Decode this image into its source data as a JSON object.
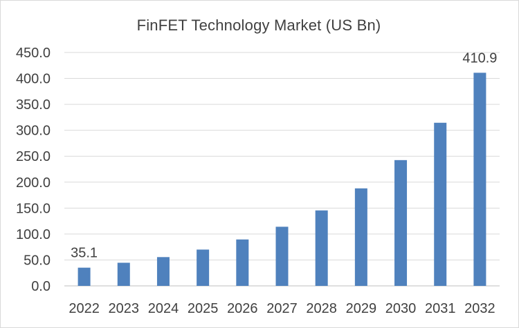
{
  "chart_data": {
    "type": "bar",
    "title": "FinFET Technology Market (US Bn)",
    "xlabel": "",
    "ylabel": "",
    "categories": [
      "2022",
      "2023",
      "2024",
      "2025",
      "2026",
      "2027",
      "2028",
      "2029",
      "2030",
      "2031",
      "2032"
    ],
    "values": [
      35.1,
      44.6,
      55.5,
      70.0,
      89.5,
      114.0,
      145.5,
      188.0,
      242.5,
      314.5,
      410.9
    ],
    "ylim": [
      0,
      450
    ],
    "yticks": [
      "0.0",
      "50.0",
      "100.0",
      "150.0",
      "200.0",
      "250.0",
      "300.0",
      "350.0",
      "400.0",
      "450.0"
    ],
    "data_labels": [
      {
        "category": "2022",
        "text": "35.1"
      },
      {
        "category": "2032",
        "text": "410.9"
      }
    ],
    "grid": true,
    "legend": "none",
    "bar_color": "#4f81bd"
  }
}
